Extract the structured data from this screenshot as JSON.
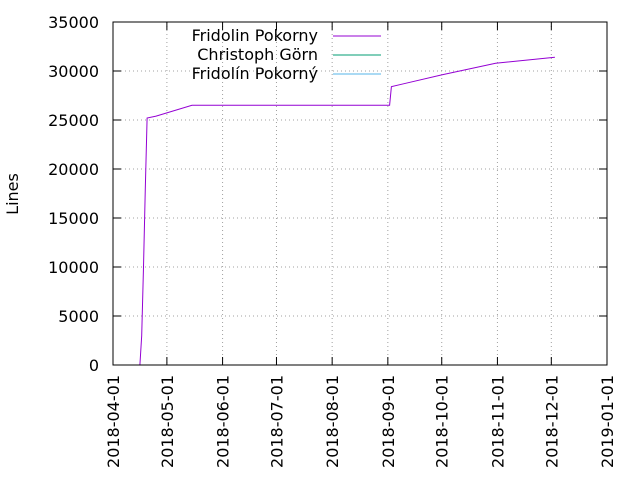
{
  "chart_data": {
    "type": "line",
    "title": "",
    "xlabel": "",
    "ylabel": "Lines",
    "ylim": [
      0,
      35000
    ],
    "xlim": [
      "2018-04-01",
      "2019-01-01"
    ],
    "y_ticks": [
      0,
      5000,
      10000,
      15000,
      20000,
      25000,
      30000,
      35000
    ],
    "x_ticks": [
      "2018-04-01",
      "2018-05-01",
      "2018-06-01",
      "2018-07-01",
      "2018-08-01",
      "2018-09-01",
      "2018-10-01",
      "2018-11-01",
      "2018-12-01",
      "2019-01-01"
    ],
    "grid": true,
    "legend_position": "top-left",
    "series": [
      {
        "name": "Fridolin Pokorny",
        "color": "#9400d3",
        "points": [
          {
            "x": "2018-04-16",
            "y": 0
          },
          {
            "x": "2018-04-17",
            "y": 3000
          },
          {
            "x": "2018-04-18",
            "y": 10000
          },
          {
            "x": "2018-04-19",
            "y": 18000
          },
          {
            "x": "2018-04-20",
            "y": 25200
          },
          {
            "x": "2018-04-25",
            "y": 25400
          },
          {
            "x": "2018-05-15",
            "y": 26500
          },
          {
            "x": "2018-09-02",
            "y": 26500
          },
          {
            "x": "2018-09-03",
            "y": 28400
          },
          {
            "x": "2018-09-10",
            "y": 28700
          },
          {
            "x": "2018-10-01",
            "y": 29600
          },
          {
            "x": "2018-10-31",
            "y": 30800
          },
          {
            "x": "2018-12-03",
            "y": 31400
          }
        ]
      },
      {
        "name": "Christoph Görn",
        "color": "#009e73",
        "points": []
      },
      {
        "name": "Fridolín Pokorný",
        "color": "#56b4e9",
        "points": []
      }
    ]
  }
}
